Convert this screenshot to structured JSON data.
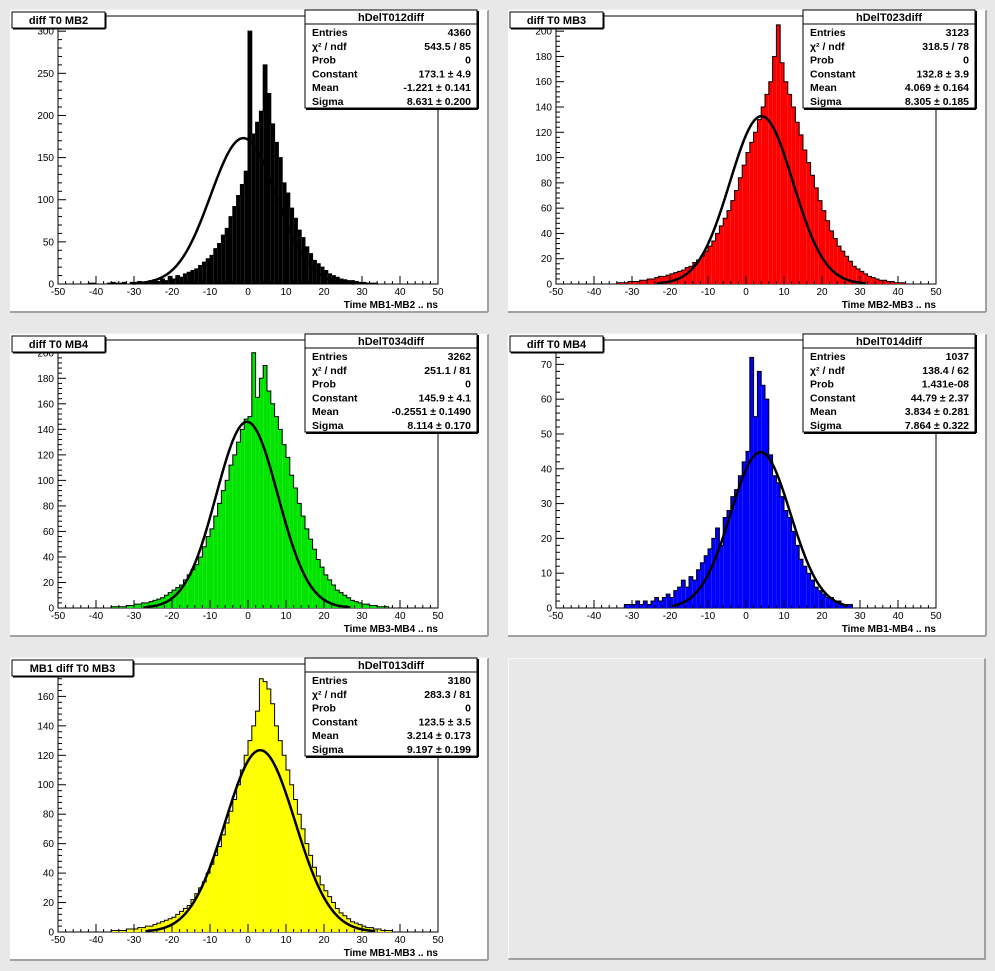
{
  "chart_data": [
    {
      "type": "bar",
      "pad_title": "diff T0 MB2",
      "stats": {
        "name": "hDelT012diff",
        "rows": [
          {
            "label": "Entries",
            "value": "4360"
          },
          {
            "label": "χ² / ndf",
            "value": "543.5 / 85"
          },
          {
            "label": "Prob",
            "value": "0"
          },
          {
            "label": "Constant",
            "value": "173.1 ± 4.9"
          },
          {
            "label": "Mean",
            "value": "-1.221 ± 0.141"
          },
          {
            "label": "Sigma",
            "value": "8.631 ± 0.200"
          }
        ]
      },
      "xlabel": "Time MB1-MB2  ..  ns",
      "xlim": [
        -50,
        50
      ],
      "ylim": [
        0,
        318
      ],
      "xticks": [
        -50,
        -40,
        -30,
        -20,
        -10,
        0,
        10,
        20,
        30,
        40,
        50
      ],
      "yticks": [
        0,
        50,
        100,
        150,
        200,
        250,
        300
      ],
      "fill_color": "#000000",
      "fit": {
        "constant": 173.1,
        "mean": -1.221,
        "sigma": 8.631
      },
      "bin_start": -50,
      "bin_width": 1,
      "values": [
        0,
        0,
        0,
        0,
        0,
        0,
        0,
        0,
        1,
        1,
        0,
        0,
        0,
        1,
        2,
        1,
        1,
        2,
        0,
        2,
        2,
        3,
        2,
        3,
        4,
        5,
        3,
        6,
        4,
        9,
        6,
        10,
        8,
        12,
        14,
        16,
        18,
        22,
        26,
        30,
        34,
        42,
        48,
        58,
        66,
        80,
        92,
        105,
        118,
        134,
        300,
        178,
        192,
        205,
        260,
        226,
        190,
        168,
        150,
        120,
        108,
        90,
        78,
        64,
        55,
        44,
        36,
        28,
        24,
        20,
        16,
        12,
        10,
        8,
        6,
        5,
        4,
        4,
        3,
        2,
        2,
        1,
        1,
        1,
        0,
        0,
        0,
        0,
        0,
        0,
        0,
        0,
        0,
        0,
        0,
        0,
        0,
        0,
        0,
        0
      ]
    },
    {
      "type": "bar",
      "pad_title": "diff T0 MB3",
      "stats": {
        "name": "hDelT023diff",
        "rows": [
          {
            "label": "Entries",
            "value": "3123"
          },
          {
            "label": "χ² / ndf",
            "value": "318.5 / 78"
          },
          {
            "label": "Prob",
            "value": "0"
          },
          {
            "label": "Constant",
            "value": "132.8 ± 3.9"
          },
          {
            "label": "Mean",
            "value": "4.069 ± 0.164"
          },
          {
            "label": "Sigma",
            "value": "8.305 ± 0.185"
          }
        ]
      },
      "xlabel": "Time MB2-MB3  ..  ns",
      "xlim": [
        -50,
        50
      ],
      "ylim": [
        0,
        212
      ],
      "xticks": [
        -50,
        -40,
        -30,
        -20,
        -10,
        0,
        10,
        20,
        30,
        40,
        50
      ],
      "yticks": [
        0,
        20,
        40,
        60,
        80,
        100,
        120,
        140,
        160,
        180,
        200
      ],
      "fill_color": "#ff0000",
      "fit": {
        "constant": 132.8,
        "mean": 4.069,
        "sigma": 8.305
      },
      "bin_start": -50,
      "bin_width": 1,
      "values": [
        0,
        0,
        0,
        0,
        0,
        0,
        0,
        0,
        0,
        0,
        0,
        0,
        0,
        0,
        0,
        0,
        1,
        1,
        1,
        2,
        2,
        2,
        3,
        3,
        4,
        4,
        5,
        6,
        6,
        7,
        8,
        9,
        10,
        11,
        13,
        14,
        17,
        19,
        22,
        26,
        30,
        34,
        40,
        46,
        52,
        58,
        66,
        74,
        84,
        94,
        104,
        112,
        120,
        130,
        140,
        150,
        160,
        180,
        205,
        175,
        160,
        150,
        140,
        128,
        118,
        106,
        96,
        86,
        76,
        66,
        58,
        50,
        42,
        36,
        30,
        26,
        22,
        18,
        14,
        12,
        10,
        8,
        6,
        5,
        4,
        3,
        3,
        2,
        2,
        1,
        1,
        1,
        0,
        0,
        0,
        0,
        0,
        0,
        0,
        0
      ]
    },
    {
      "type": "bar",
      "pad_title": "diff T0 MB4",
      "stats": {
        "name": "hDelT034diff",
        "rows": [
          {
            "label": "Entries",
            "value": "3262"
          },
          {
            "label": "χ² / ndf",
            "value": "251.1 / 81"
          },
          {
            "label": "Prob",
            "value": "0"
          },
          {
            "label": "Constant",
            "value": "145.9 ± 4.1"
          },
          {
            "label": "Mean",
            "value": "-0.2551 ± 0.1490"
          },
          {
            "label": "Sigma",
            "value": "8.114 ± 0.170"
          }
        ]
      },
      "xlabel": "Time MB3-MB4  ..  ns",
      "xlim": [
        -50,
        50
      ],
      "ylim": [
        0,
        210
      ],
      "xticks": [
        -50,
        -40,
        -30,
        -20,
        -10,
        0,
        10,
        20,
        30,
        40,
        50
      ],
      "yticks": [
        0,
        20,
        40,
        60,
        80,
        100,
        120,
        140,
        160,
        180,
        200
      ],
      "fill_color": "#00e400",
      "fit": {
        "constant": 145.9,
        "mean": -0.2551,
        "sigma": 8.114
      },
      "bin_start": -50,
      "bin_width": 1,
      "values": [
        0,
        0,
        0,
        0,
        0,
        0,
        0,
        0,
        0,
        0,
        0,
        0,
        0,
        0,
        1,
        1,
        1,
        1,
        2,
        2,
        3,
        3,
        4,
        4,
        5,
        6,
        7,
        8,
        10,
        12,
        14,
        16,
        18,
        22,
        26,
        30,
        34,
        40,
        48,
        56,
        62,
        72,
        82,
        92,
        100,
        112,
        120,
        130,
        140,
        148,
        150,
        200,
        165,
        180,
        190,
        170,
        160,
        150,
        140,
        128,
        118,
        104,
        94,
        82,
        72,
        62,
        54,
        46,
        38,
        32,
        26,
        22,
        18,
        14,
        12,
        10,
        8,
        6,
        5,
        4,
        3,
        3,
        2,
        2,
        1,
        1,
        1,
        0,
        0,
        0,
        0,
        0,
        0,
        0,
        0,
        0,
        0,
        0,
        0,
        0
      ]
    },
    {
      "type": "bar",
      "pad_title": "diff T0 MB4",
      "stats": {
        "name": "hDelT014diff",
        "rows": [
          {
            "label": "Entries",
            "value": "1037"
          },
          {
            "label": "χ² / ndf",
            "value": "138.4 / 62"
          },
          {
            "label": "Prob",
            "value": "1.431e-08"
          },
          {
            "label": "Constant",
            "value": "44.79 ± 2.37"
          },
          {
            "label": "Mean",
            "value": "3.834 ± 0.281"
          },
          {
            "label": "Sigma",
            "value": "7.864 ± 0.322"
          }
        ]
      },
      "xlabel": "Time MB1-MB4  ..  ns",
      "xlim": [
        -50,
        50
      ],
      "ylim": [
        0,
        77
      ],
      "xticks": [
        -50,
        -40,
        -30,
        -20,
        -10,
        0,
        10,
        20,
        30,
        40,
        50
      ],
      "yticks": [
        0,
        10,
        20,
        30,
        40,
        50,
        60,
        70
      ],
      "fill_color": "#0000ff",
      "fit": {
        "constant": 44.79,
        "mean": 3.834,
        "sigma": 7.864
      },
      "bin_start": -50,
      "bin_width": 1,
      "values": [
        0,
        0,
        0,
        0,
        0,
        0,
        0,
        0,
        0,
        0,
        0,
        0,
        0,
        0,
        0,
        0,
        0,
        0,
        1,
        1,
        1,
        2,
        1,
        2,
        1,
        2,
        3,
        2,
        3,
        4,
        3,
        5,
        6,
        8,
        6,
        9,
        8,
        11,
        13,
        15,
        17,
        20,
        23,
        18,
        26,
        28,
        32,
        34,
        38,
        42,
        45,
        72,
        55,
        68,
        64,
        60,
        44,
        38,
        36,
        32,
        28,
        26,
        22,
        18,
        14,
        12,
        10,
        8,
        6,
        5,
        4,
        3,
        3,
        2,
        2,
        1,
        1,
        1,
        0,
        0,
        0,
        0,
        0,
        0,
        0,
        0,
        0,
        0,
        0,
        0,
        0,
        0,
        0,
        0,
        0,
        0,
        0,
        0,
        0,
        0
      ]
    },
    {
      "type": "bar",
      "pad_title": "MB1 diff T0 MB3",
      "stats": {
        "name": "hDelT013diff",
        "rows": [
          {
            "label": "Entries",
            "value": "3180"
          },
          {
            "label": "χ² / ndf",
            "value": "283.3 / 81"
          },
          {
            "label": "Prob",
            "value": "0"
          },
          {
            "label": "Constant",
            "value": "123.5 ± 3.5"
          },
          {
            "label": "Mean",
            "value": "3.214 ± 0.173"
          },
          {
            "label": "Sigma",
            "value": "9.197 ± 0.199"
          }
        ]
      },
      "xlabel": "Time MB1-MB3  ..  ns",
      "xlim": [
        -50,
        50
      ],
      "ylim": [
        0,
        182
      ],
      "xticks": [
        -50,
        -40,
        -30,
        -20,
        -10,
        0,
        10,
        20,
        30,
        40,
        50
      ],
      "yticks": [
        0,
        20,
        40,
        60,
        80,
        100,
        120,
        140,
        160,
        180
      ],
      "fill_color": "#ffff00",
      "fit": {
        "constant": 123.5,
        "mean": 3.214,
        "sigma": 9.197
      },
      "bin_start": -50,
      "bin_width": 1,
      "values": [
        0,
        0,
        0,
        0,
        0,
        0,
        0,
        0,
        0,
        0,
        0,
        0,
        0,
        0,
        1,
        1,
        1,
        1,
        2,
        2,
        2,
        3,
        3,
        4,
        4,
        5,
        6,
        7,
        8,
        9,
        10,
        12,
        14,
        16,
        18,
        22,
        26,
        30,
        34,
        40,
        46,
        52,
        58,
        66,
        74,
        82,
        90,
        100,
        110,
        120,
        130,
        140,
        150,
        172,
        170,
        165,
        155,
        140,
        130,
        120,
        110,
        100,
        90,
        80,
        70,
        60,
        52,
        44,
        38,
        32,
        28,
        24,
        20,
        16,
        13,
        11,
        9,
        7,
        6,
        5,
        4,
        3,
        3,
        2,
        2,
        1,
        1,
        1,
        0,
        0,
        0,
        0,
        0,
        0,
        0,
        0,
        0,
        0,
        0,
        0
      ]
    }
  ]
}
